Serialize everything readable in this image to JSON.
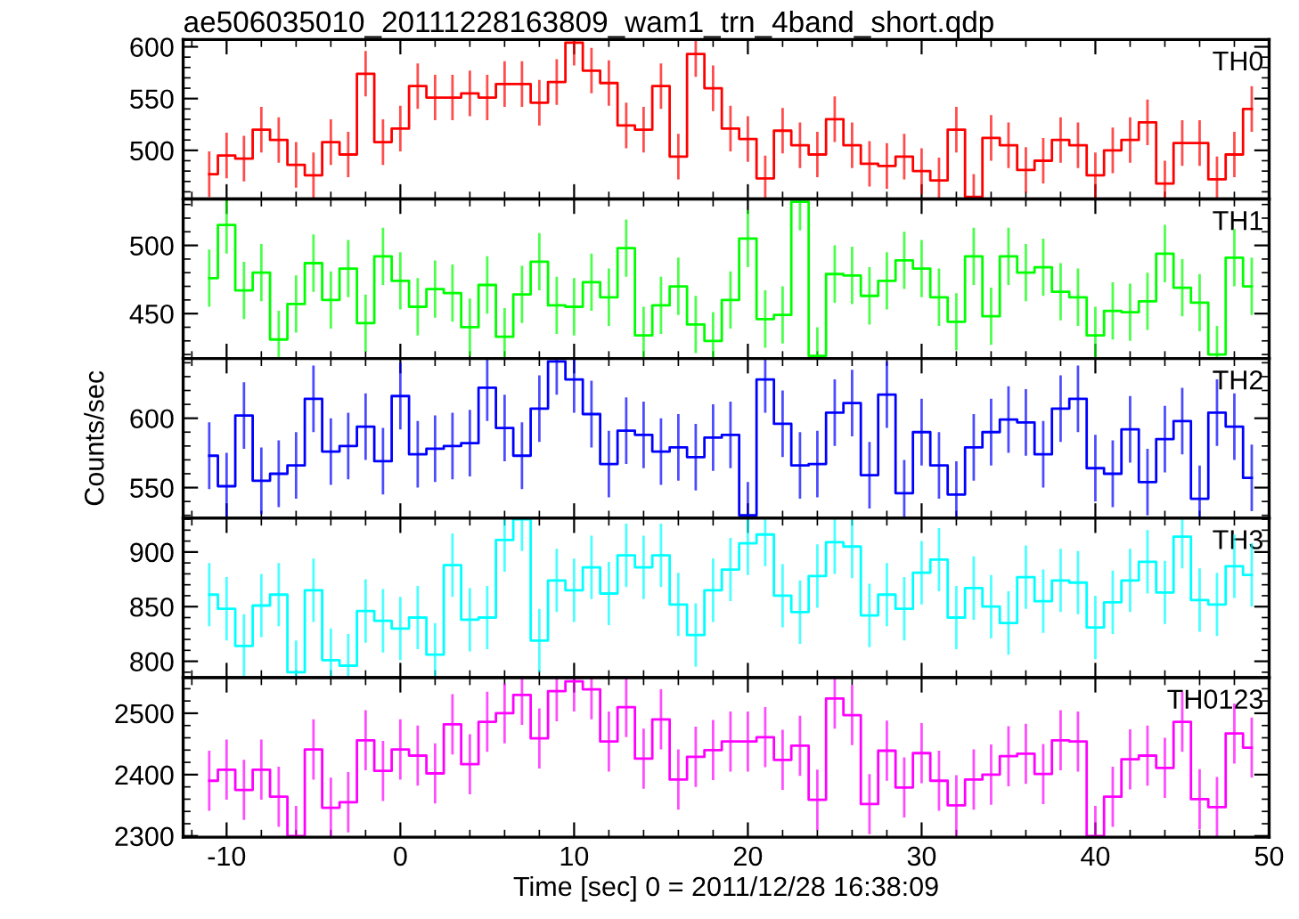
{
  "chart_data": [
    {
      "type": "step",
      "title": "ae506035010_20111228163809_wam1_trn_4band_short.qdp",
      "tick_labels": "y",
      "xlim": [
        -12.5,
        50
      ],
      "xticks": [
        -10,
        0,
        10,
        20,
        30,
        40,
        50
      ],
      "ylim": [
        453,
        607
      ],
      "yticks": [
        500,
        550,
        600
      ],
      "x": [
        -11,
        -10,
        -9,
        -8,
        -7,
        -6,
        -5,
        -4,
        -3,
        -2,
        -1,
        0,
        1,
        2,
        3,
        4,
        5,
        6,
        7,
        8,
        9,
        10,
        11,
        12,
        13,
        14,
        15,
        16,
        17,
        18,
        19,
        20,
        21,
        22,
        23,
        24,
        25,
        26,
        27,
        28,
        29,
        30,
        31,
        32,
        33,
        34,
        35,
        36,
        37,
        38,
        39,
        40,
        41,
        42,
        43,
        44,
        45,
        46,
        47,
        48,
        49
      ],
      "series": [
        {
          "name": "TH0",
          "color": "#ff0000",
          "values": [
            477,
            495,
            492,
            520,
            510,
            486,
            476,
            508,
            496,
            574,
            508,
            521,
            562,
            551,
            551,
            555,
            551,
            564,
            564,
            546,
            566,
            604,
            577,
            565,
            524,
            520,
            562,
            494,
            593,
            560,
            521,
            511,
            473,
            519,
            505,
            496,
            530,
            505,
            487,
            485,
            494,
            480,
            471,
            520,
            455,
            512,
            505,
            481,
            490,
            510,
            505,
            476,
            500,
            510,
            527,
            468,
            507,
            507,
            472,
            496,
            540
          ],
          "errors": [
            22,
            22,
            22,
            22,
            22,
            22,
            22,
            22,
            22,
            22,
            22,
            22,
            22,
            22,
            22,
            22,
            22,
            22,
            22,
            22,
            22,
            22,
            22,
            22,
            22,
            22,
            22,
            22,
            22,
            22,
            22,
            22,
            22,
            22,
            22,
            22,
            22,
            22,
            22,
            22,
            22,
            22,
            22,
            22,
            22,
            22,
            22,
            22,
            22,
            22,
            22,
            22,
            22,
            22,
            22,
            22,
            22,
            22,
            22,
            22,
            22
          ]
        }
      ]
    },
    {
      "type": "step",
      "tick_labels": "y",
      "xlim": [
        -12.5,
        50
      ],
      "xticks": [
        -10,
        0,
        10,
        20,
        30,
        40,
        50
      ],
      "ylim": [
        417,
        534
      ],
      "yticks": [
        450,
        500
      ],
      "x": [
        -11,
        -10,
        -9,
        -8,
        -7,
        -6,
        -5,
        -4,
        -3,
        -2,
        -1,
        0,
        1,
        2,
        3,
        4,
        5,
        6,
        7,
        8,
        9,
        10,
        11,
        12,
        13,
        14,
        15,
        16,
        17,
        18,
        19,
        20,
        21,
        22,
        23,
        24,
        25,
        26,
        27,
        28,
        29,
        30,
        31,
        32,
        33,
        34,
        35,
        36,
        37,
        38,
        39,
        40,
        41,
        42,
        43,
        44,
        45,
        46,
        47,
        48,
        49
      ],
      "series": [
        {
          "name": "TH1",
          "color": "#00ff00",
          "values": [
            476,
            515,
            467,
            480,
            431,
            457,
            487,
            460,
            483,
            443,
            492,
            474,
            455,
            468,
            465,
            440,
            471,
            433,
            464,
            488,
            456,
            455,
            473,
            462,
            498,
            434,
            456,
            470,
            442,
            430,
            460,
            505,
            446,
            449,
            532,
            419,
            479,
            478,
            463,
            474,
            489,
            483,
            462,
            444,
            492,
            448,
            492,
            480,
            484,
            466,
            462,
            434,
            452,
            451,
            459,
            494,
            469,
            458,
            420,
            491,
            470
          ],
          "errors": [
            21,
            21,
            21,
            21,
            21,
            21,
            21,
            21,
            21,
            21,
            21,
            21,
            21,
            21,
            21,
            21,
            21,
            21,
            21,
            21,
            21,
            21,
            21,
            21,
            21,
            21,
            21,
            21,
            21,
            21,
            21,
            21,
            21,
            21,
            21,
            21,
            21,
            21,
            21,
            21,
            21,
            21,
            21,
            21,
            21,
            21,
            21,
            21,
            21,
            21,
            21,
            21,
            21,
            21,
            21,
            21,
            21,
            21,
            21,
            21,
            21
          ]
        }
      ]
    },
    {
      "type": "step",
      "tick_labels": "y",
      "ylabel": "Counts/sec",
      "xlim": [
        -12.5,
        50
      ],
      "xticks": [
        -10,
        0,
        10,
        20,
        30,
        40,
        50
      ],
      "ylim": [
        528,
        643
      ],
      "yticks": [
        550,
        600
      ],
      "x": [
        -11,
        -10,
        -9,
        -8,
        -7,
        -6,
        -5,
        -4,
        -3,
        -2,
        -1,
        0,
        1,
        2,
        3,
        4,
        5,
        6,
        7,
        8,
        9,
        10,
        11,
        12,
        13,
        14,
        15,
        16,
        17,
        18,
        19,
        20,
        21,
        22,
        23,
        24,
        25,
        26,
        27,
        28,
        29,
        30,
        31,
        32,
        33,
        34,
        35,
        36,
        37,
        38,
        39,
        40,
        41,
        42,
        43,
        44,
        45,
        46,
        47,
        48,
        49
      ],
      "series": [
        {
          "name": "TH2",
          "color": "#0000ff",
          "values": [
            573,
            551,
            602,
            555,
            560,
            566,
            614,
            576,
            580,
            594,
            569,
            616,
            574,
            578,
            580,
            582,
            622,
            593,
            573,
            607,
            641,
            628,
            603,
            567,
            591,
            588,
            576,
            579,
            572,
            586,
            588,
            530,
            628,
            596,
            566,
            567,
            604,
            611,
            559,
            617,
            546,
            590,
            566,
            545,
            579,
            590,
            599,
            597,
            574,
            607,
            614,
            564,
            560,
            592,
            554,
            585,
            598,
            542,
            604,
            594,
            557
          ],
          "errors": [
            24,
            24,
            24,
            24,
            24,
            24,
            24,
            24,
            24,
            24,
            24,
            24,
            24,
            24,
            24,
            24,
            24,
            24,
            24,
            24,
            24,
            24,
            24,
            24,
            24,
            24,
            24,
            24,
            24,
            24,
            24,
            24,
            24,
            24,
            24,
            24,
            24,
            24,
            24,
            24,
            24,
            24,
            24,
            24,
            24,
            24,
            24,
            24,
            24,
            24,
            24,
            24,
            24,
            24,
            24,
            24,
            24,
            24,
            24,
            24,
            24
          ]
        }
      ]
    },
    {
      "type": "step",
      "tick_labels": "y",
      "xlim": [
        -12.5,
        50
      ],
      "xticks": [
        -10,
        0,
        10,
        20,
        30,
        40,
        50
      ],
      "ylim": [
        785,
        931
      ],
      "yticks": [
        800,
        850,
        900
      ],
      "x": [
        -11,
        -10,
        -9,
        -8,
        -7,
        -6,
        -5,
        -4,
        -3,
        -2,
        -1,
        0,
        1,
        2,
        3,
        4,
        5,
        6,
        7,
        8,
        9,
        10,
        11,
        12,
        13,
        14,
        15,
        16,
        17,
        18,
        19,
        20,
        21,
        22,
        23,
        24,
        25,
        26,
        27,
        28,
        29,
        30,
        31,
        32,
        33,
        34,
        35,
        36,
        37,
        38,
        39,
        40,
        41,
        42,
        43,
        44,
        45,
        46,
        47,
        48,
        49
      ],
      "series": [
        {
          "name": "TH3",
          "color": "#00ffff",
          "values": [
            861,
            848,
            814,
            851,
            861,
            790,
            865,
            801,
            796,
            846,
            837,
            830,
            840,
            806,
            888,
            838,
            840,
            911,
            930,
            819,
            874,
            865,
            886,
            862,
            897,
            886,
            897,
            852,
            824,
            865,
            884,
            908,
            916,
            860,
            845,
            878,
            909,
            905,
            842,
            861,
            848,
            881,
            893,
            840,
            867,
            850,
            835,
            877,
            855,
            874,
            872,
            831,
            854,
            874,
            891,
            863,
            914,
            856,
            852,
            887,
            879
          ],
          "errors": [
            29,
            29,
            29,
            29,
            29,
            29,
            29,
            29,
            29,
            29,
            29,
            29,
            29,
            29,
            29,
            29,
            29,
            29,
            29,
            29,
            29,
            29,
            29,
            29,
            29,
            29,
            29,
            29,
            29,
            29,
            29,
            29,
            29,
            29,
            29,
            29,
            29,
            29,
            29,
            29,
            29,
            29,
            29,
            29,
            29,
            29,
            29,
            29,
            29,
            29,
            29,
            29,
            29,
            29,
            29,
            29,
            29,
            29,
            29,
            29,
            29
          ]
        }
      ]
    },
    {
      "type": "step",
      "xlabel": "Time [sec] 0 = 2011/12/28 16:38:09",
      "xlim": [
        -12.5,
        50
      ],
      "xticks": [
        -10,
        0,
        10,
        20,
        30,
        40,
        50
      ],
      "ylim": [
        2298,
        2558
      ],
      "yticks": [
        2300,
        2400,
        2500
      ],
      "x": [
        -11,
        -10,
        -9,
        -8,
        -7,
        -6,
        -5,
        -4,
        -3,
        -2,
        -1,
        0,
        1,
        2,
        3,
        4,
        5,
        6,
        7,
        8,
        9,
        10,
        11,
        12,
        13,
        14,
        15,
        16,
        17,
        18,
        19,
        20,
        21,
        22,
        23,
        24,
        25,
        26,
        27,
        28,
        29,
        30,
        31,
        32,
        33,
        34,
        35,
        36,
        37,
        38,
        39,
        40,
        41,
        42,
        43,
        44,
        45,
        46,
        47,
        48,
        49
      ],
      "series": [
        {
          "name": "TH0123",
          "color": "#ff00ff",
          "values": [
            2390,
            2408,
            2375,
            2408,
            2364,
            2300,
            2441,
            2346,
            2355,
            2456,
            2406,
            2441,
            2431,
            2402,
            2482,
            2417,
            2486,
            2500,
            2530,
            2459,
            2536,
            2552,
            2539,
            2454,
            2510,
            2426,
            2490,
            2392,
            2429,
            2440,
            2454,
            2454,
            2461,
            2424,
            2447,
            2359,
            2524,
            2497,
            2352,
            2439,
            2379,
            2435,
            2390,
            2350,
            2392,
            2400,
            2430,
            2434,
            2401,
            2456,
            2454,
            2300,
            2364,
            2425,
            2431,
            2411,
            2486,
            2360,
            2347,
            2467,
            2444
          ],
          "errors": [
            49,
            49,
            49,
            49,
            49,
            49,
            49,
            49,
            49,
            49,
            49,
            49,
            49,
            49,
            49,
            49,
            49,
            49,
            49,
            49,
            49,
            49,
            49,
            49,
            49,
            49,
            49,
            49,
            49,
            49,
            49,
            49,
            49,
            49,
            49,
            49,
            49,
            49,
            49,
            49,
            49,
            49,
            49,
            49,
            49,
            49,
            49,
            49,
            49,
            49,
            49,
            49,
            49,
            49,
            49,
            49,
            49,
            49,
            49,
            49,
            49
          ]
        }
      ]
    }
  ]
}
